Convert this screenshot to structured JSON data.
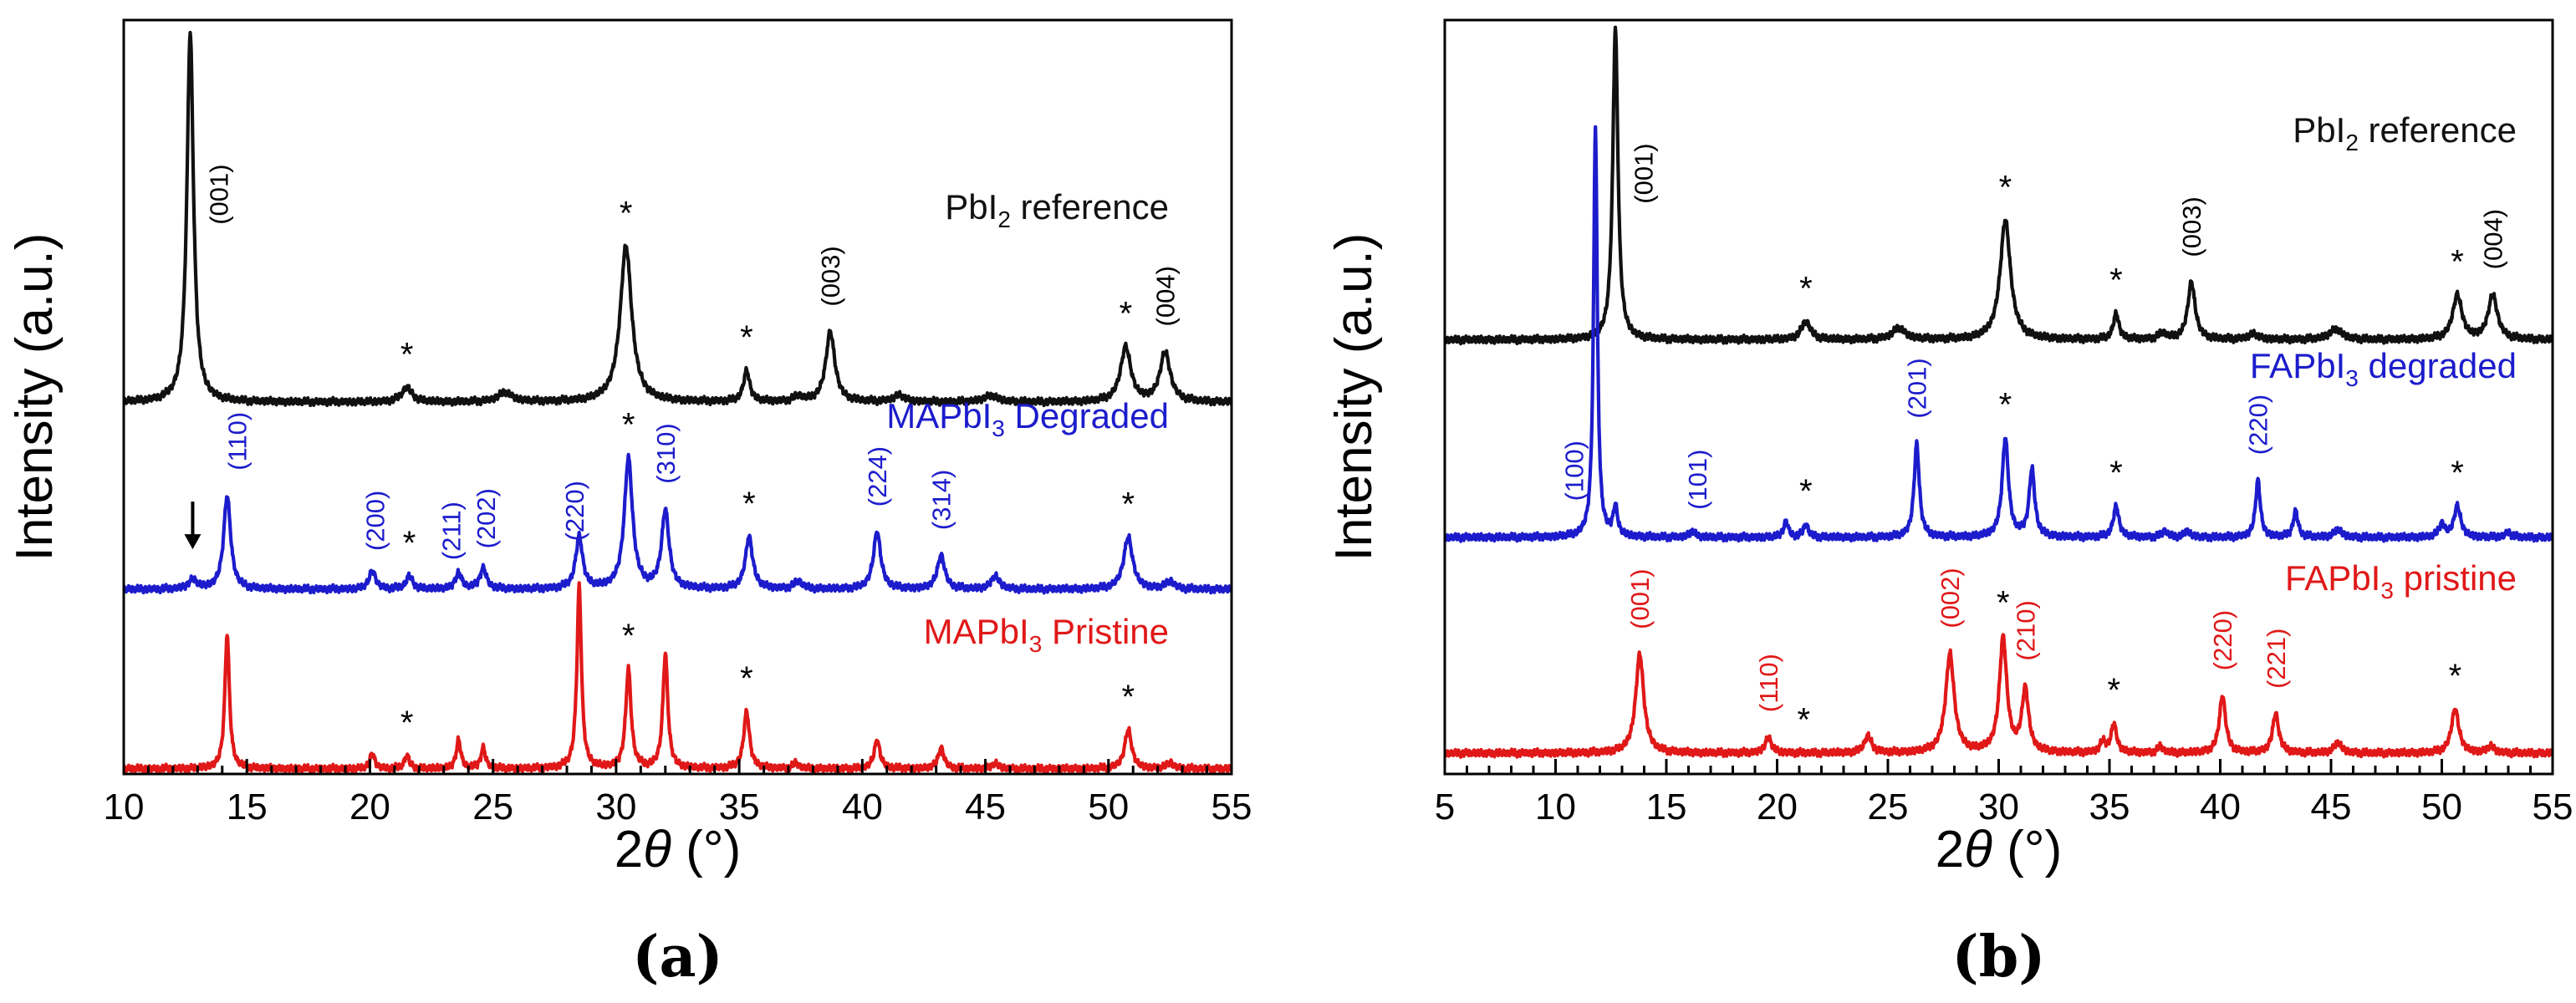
{
  "colors": {
    "black": "#111111",
    "blue": "#1c1ccc",
    "red": "#e01818"
  },
  "chart_data": [
    {
      "id": "a",
      "type": "line",
      "panel_label": "(a)",
      "xlabel_prefix": "2",
      "xlabel_var": "θ",
      "xlabel_unit": " (°)",
      "ylabel": "Intensity (a.u.)",
      "xlim": [
        10,
        55
      ],
      "ylim": [
        0,
        1.45
      ],
      "xticks": [
        10,
        15,
        20,
        25,
        30,
        35,
        40,
        45,
        50,
        55
      ],
      "xtick_labels": [
        "10",
        "15",
        "20",
        "25",
        "30",
        "35",
        "40",
        "45",
        "50",
        "55"
      ],
      "minor_step": 1,
      "series": [
        {
          "name": "PbI₂ reference",
          "label_parts": [
            "PbI",
            "2",
            " reference"
          ],
          "color": "black",
          "baseline": 0.715,
          "peaks": [
            [
              12.7,
              0.71,
              0.16
            ],
            [
              21.5,
              0.028,
              0.25
            ],
            [
              25.5,
              0.018,
              0.35
            ],
            [
              30.4,
              0.3,
              0.28
            ],
            [
              35.3,
              0.06,
              0.15
            ],
            [
              37.4,
              0.01,
              0.2
            ],
            [
              38.7,
              0.135,
              0.22
            ],
            [
              41.5,
              0.012,
              0.3
            ],
            [
              45.2,
              0.012,
              0.35
            ],
            [
              50.7,
              0.105,
              0.25
            ],
            [
              52.3,
              0.095,
              0.25
            ]
          ],
          "stars_x": [
            21.5,
            30.4,
            35.3,
            50.7
          ],
          "annotations": [
            {
              "x": 12.9,
              "text": "(001)"
            },
            {
              "x": 38.7,
              "text": "(003)"
            },
            {
              "x": 52.3,
              "text": "(004)"
            }
          ]
        },
        {
          "name": "MAPbI₃ Degraded",
          "label_parts": [
            "MAPbI",
            "3",
            " Degraded"
          ],
          "color": "blue",
          "baseline": 0.355,
          "peaks": [
            [
              12.8,
              0.018,
              0.2
            ],
            [
              14.2,
              0.18,
              0.17
            ],
            [
              20.1,
              0.035,
              0.16
            ],
            [
              21.6,
              0.025,
              0.16
            ],
            [
              23.6,
              0.03,
              0.16
            ],
            [
              24.6,
              0.04,
              0.16
            ],
            [
              28.5,
              0.1,
              0.17
            ],
            [
              30.5,
              0.25,
              0.2
            ],
            [
              32.0,
              0.15,
              0.18
            ],
            [
              35.4,
              0.1,
              0.18
            ],
            [
              37.4,
              0.015,
              0.2
            ],
            [
              40.6,
              0.11,
              0.18
            ],
            [
              43.2,
              0.065,
              0.18
            ],
            [
              45.4,
              0.025,
              0.2
            ],
            [
              50.8,
              0.1,
              0.22
            ],
            [
              52.5,
              0.015,
              0.2
            ]
          ],
          "stars_x": [
            21.6,
            30.5,
            35.4,
            50.8
          ],
          "annotations": [
            {
              "x": 14.2,
              "text": "(110)"
            },
            {
              "x": 20.2,
              "text": "(200)"
            },
            {
              "x": 23.3,
              "text": "(211)"
            },
            {
              "x": 24.7,
              "text": "(202)"
            },
            {
              "x": 28.3,
              "text": "(220)"
            },
            {
              "x": 32.0,
              "text": "(310)"
            },
            {
              "x": 40.6,
              "text": "(224)"
            },
            {
              "x": 43.2,
              "text": "(314)"
            }
          ],
          "arrow_x": 12.8
        },
        {
          "name": "MAPbI₃ Pristine",
          "label_parts": [
            "MAPbI",
            "3",
            " Pristine"
          ],
          "color": "red",
          "baseline": 0.01,
          "peaks": [
            [
              14.2,
              0.26,
              0.11
            ],
            [
              20.1,
              0.03,
              0.11
            ],
            [
              21.5,
              0.025,
              0.12
            ],
            [
              23.6,
              0.055,
              0.11
            ],
            [
              24.6,
              0.04,
              0.11
            ],
            [
              28.5,
              0.35,
              0.11
            ],
            [
              30.5,
              0.19,
              0.13
            ],
            [
              32.0,
              0.22,
              0.12
            ],
            [
              35.3,
              0.11,
              0.14
            ],
            [
              37.3,
              0.01,
              0.15
            ],
            [
              40.6,
              0.055,
              0.14
            ],
            [
              43.2,
              0.04,
              0.14
            ],
            [
              45.4,
              0.01,
              0.15
            ],
            [
              50.8,
              0.075,
              0.17
            ],
            [
              52.5,
              0.012,
              0.15
            ]
          ],
          "stars_x": [
            21.5,
            30.5,
            35.3,
            50.8
          ],
          "annotations": []
        }
      ]
    },
    {
      "id": "b",
      "type": "line",
      "panel_label": "(b)",
      "xlabel_prefix": "2",
      "xlabel_var": "θ",
      "xlabel_unit": " (°)",
      "ylabel": "Intensity (a.u.)",
      "xlim": [
        5,
        55
      ],
      "ylim": [
        0,
        1.45
      ],
      "xticks": [
        5,
        10,
        15,
        20,
        25,
        30,
        35,
        40,
        45,
        50,
        55
      ],
      "xtick_labels": [
        "5",
        "10",
        "15",
        "20",
        "25",
        "30",
        "35",
        "40",
        "45",
        "50",
        "55"
      ],
      "minor_step": 1,
      "series": [
        {
          "name": "PbI₂ reference",
          "label_parts": [
            "PbI",
            "2",
            " reference"
          ],
          "color": "black",
          "baseline": 0.835,
          "peaks": [
            [
              12.7,
              0.6,
              0.14
            ],
            [
              21.3,
              0.035,
              0.25
            ],
            [
              25.5,
              0.022,
              0.35
            ],
            [
              30.3,
              0.23,
              0.28
            ],
            [
              35.3,
              0.05,
              0.15
            ],
            [
              37.4,
              0.012,
              0.2
            ],
            [
              38.7,
              0.11,
              0.2
            ],
            [
              41.5,
              0.01,
              0.3
            ],
            [
              45.2,
              0.02,
              0.35
            ],
            [
              50.7,
              0.085,
              0.25
            ],
            [
              52.3,
              0.085,
              0.25
            ]
          ],
          "stars_x": [
            21.3,
            30.3,
            35.3,
            50.7
          ],
          "annotations": [
            {
              "x": 12.9,
              "text": "(001)"
            },
            {
              "x": 38.7,
              "text": "(003)"
            },
            {
              "x": 52.3,
              "text": "(004)"
            }
          ]
        },
        {
          "name": "FAPbI₃ degraded",
          "label_parts": [
            "FAPbI",
            "3",
            " degraded"
          ],
          "color": "blue",
          "baseline": 0.455,
          "peaks": [
            [
              11.8,
              0.79,
              0.1
            ],
            [
              12.7,
              0.055,
              0.12
            ],
            [
              16.2,
              0.012,
              0.15
            ],
            [
              20.4,
              0.03,
              0.13
            ],
            [
              21.3,
              0.025,
              0.13
            ],
            [
              26.3,
              0.18,
              0.14
            ],
            [
              30.3,
              0.19,
              0.17
            ],
            [
              31.5,
              0.13,
              0.15
            ],
            [
              35.3,
              0.06,
              0.15
            ],
            [
              37.5,
              0.012,
              0.15
            ],
            [
              38.5,
              0.012,
              0.15
            ],
            [
              41.7,
              0.11,
              0.13
            ],
            [
              43.4,
              0.05,
              0.13
            ],
            [
              45.3,
              0.015,
              0.2
            ],
            [
              50.0,
              0.025,
              0.15
            ],
            [
              50.7,
              0.06,
              0.18
            ],
            [
              53.0,
              0.01,
              0.15
            ]
          ],
          "stars_x": [
            21.3,
            30.3,
            35.3,
            50.7
          ],
          "annotations": [
            {
              "x": 11.2,
              "text": "(100)"
            },
            {
              "x": 16.4,
              "text": "(101)"
            },
            {
              "x": 26.3,
              "text": "(201)"
            },
            {
              "x": 41.7,
              "text": "(220)"
            }
          ]
        },
        {
          "name": "FAPbI₃ pristine",
          "label_parts": [
            "FAPbI",
            "3",
            " pristine"
          ],
          "color": "red",
          "baseline": 0.04,
          "peaks": [
            [
              13.8,
              0.19,
              0.22
            ],
            [
              19.6,
              0.03,
              0.17
            ],
            [
              24.1,
              0.032,
              0.2
            ],
            [
              27.8,
              0.19,
              0.23
            ],
            [
              30.2,
              0.22,
              0.2
            ],
            [
              31.2,
              0.12,
              0.18
            ],
            [
              34.7,
              0.02,
              0.15
            ],
            [
              35.2,
              0.055,
              0.15
            ],
            [
              37.3,
              0.012,
              0.15
            ],
            [
              40.1,
              0.11,
              0.17
            ],
            [
              42.5,
              0.075,
              0.17
            ],
            [
              45.3,
              0.02,
              0.2
            ],
            [
              50.6,
              0.085,
              0.2
            ],
            [
              52.2,
              0.012,
              0.2
            ]
          ],
          "stars_x": [
            21.2,
            30.2,
            35.2,
            50.6
          ],
          "annotations": [
            {
              "x": 13.8,
              "text": "(001)"
            },
            {
              "x": 19.6,
              "text": "(110)"
            },
            {
              "x": 27.8,
              "text": "(002)"
            },
            {
              "x": 31.2,
              "text": "(210)"
            },
            {
              "x": 40.1,
              "text": "(220)"
            },
            {
              "x": 42.5,
              "text": "(221)"
            }
          ]
        }
      ]
    }
  ]
}
